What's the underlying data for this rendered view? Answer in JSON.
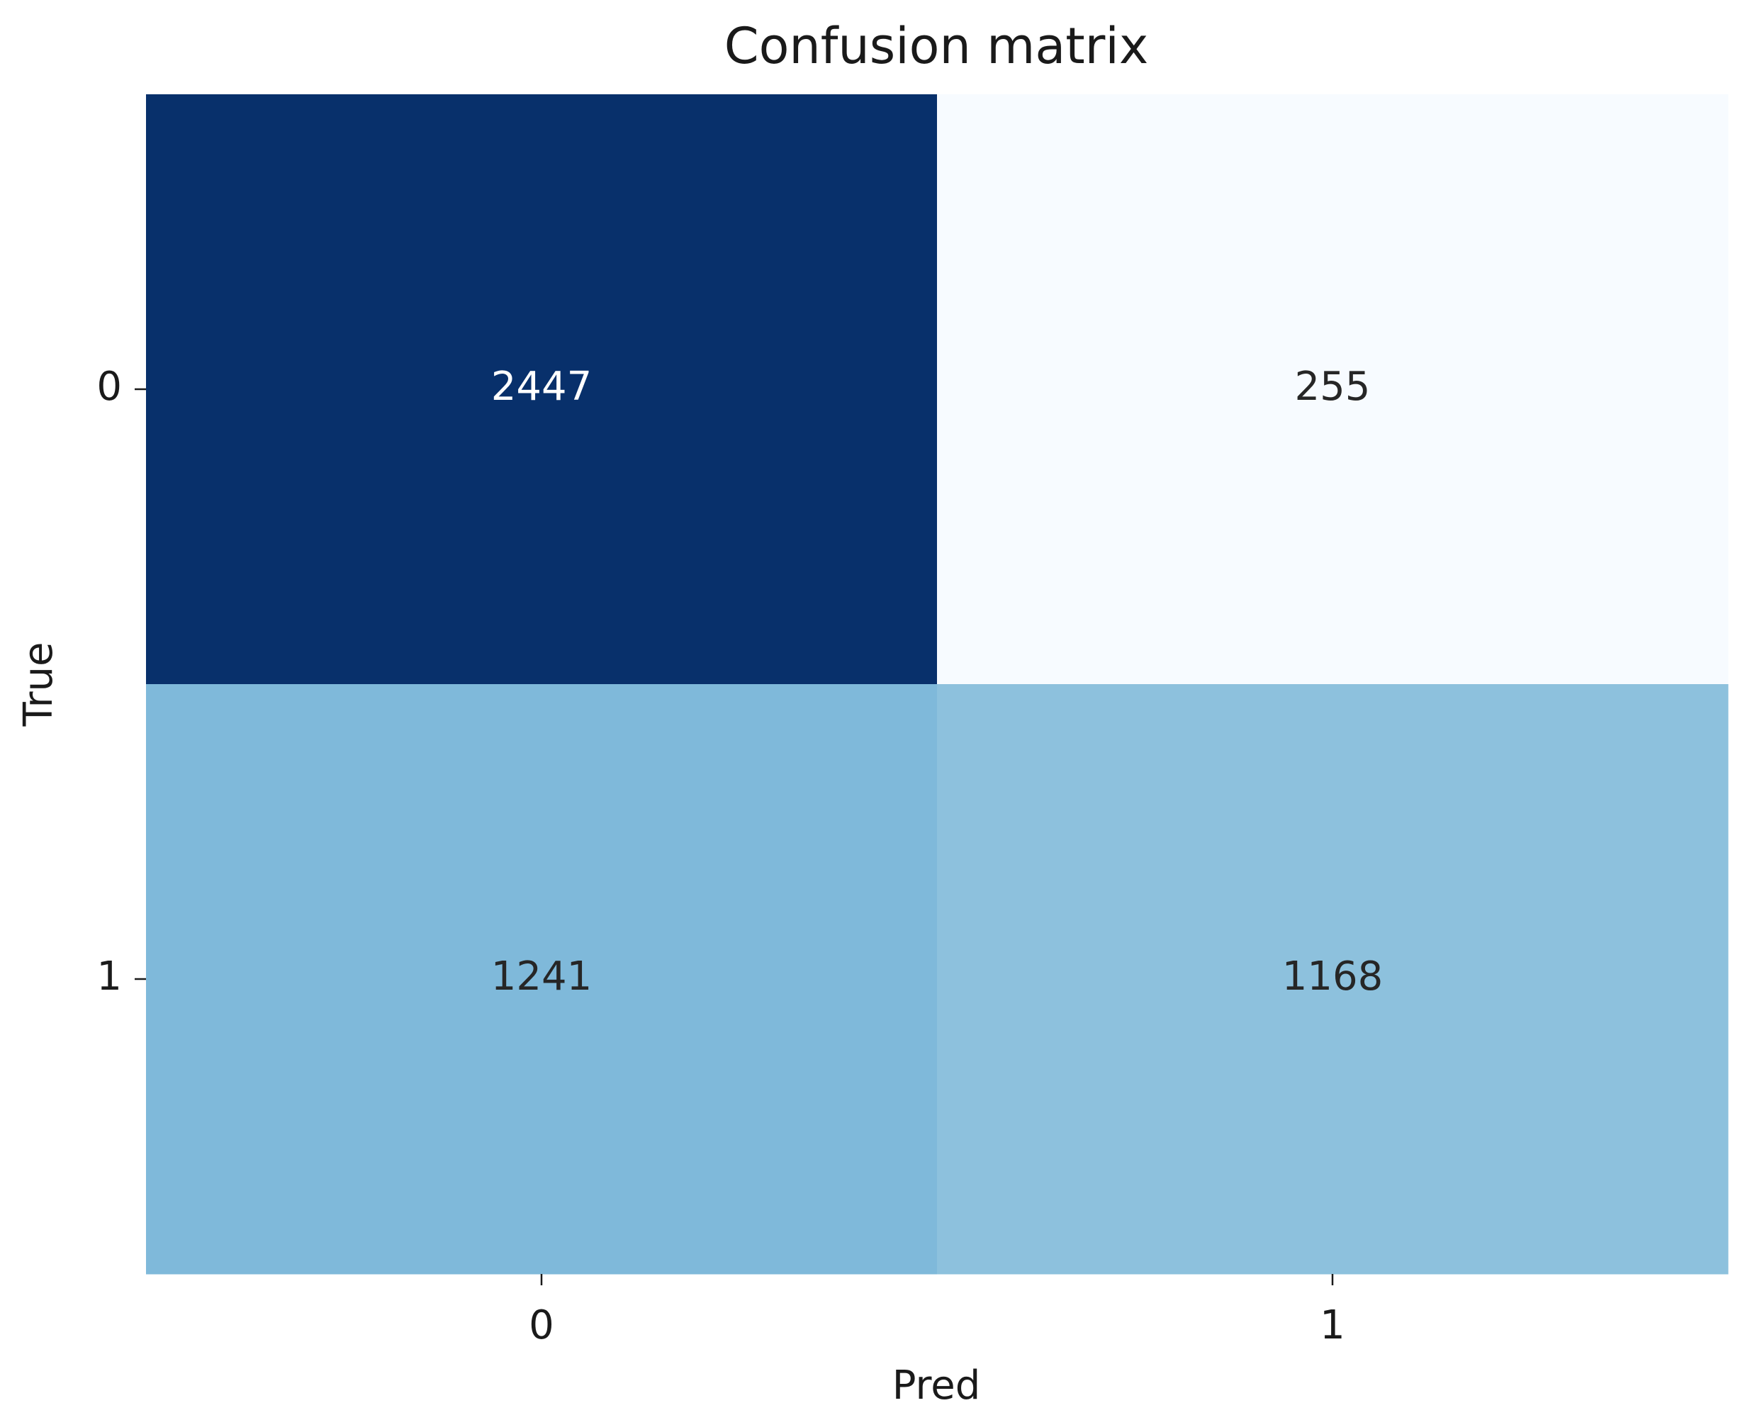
{
  "chart_data": {
    "type": "heatmap",
    "title": "Confusion matrix",
    "x_label": "Pred",
    "y_label": "True",
    "x_categories": [
      "0",
      "1"
    ],
    "y_categories": [
      "0",
      "1"
    ],
    "values": [
      [
        2447,
        255
      ],
      [
        1241,
        1168
      ]
    ],
    "colormap": "Blues"
  }
}
